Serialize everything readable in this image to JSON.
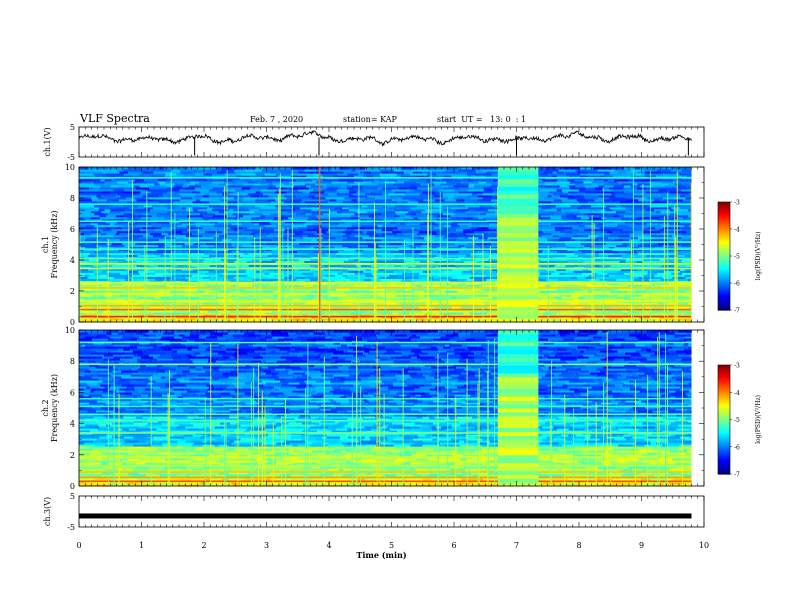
{
  "header": {
    "title": "VLF Spectra",
    "date": "Feb. 7 , 2020",
    "station": "station= KAP",
    "start_ut": "start  UT =   13: 0  : 1"
  },
  "chart_data": {
    "type": "heatmap",
    "x_axis": {
      "label": "Time  (min)",
      "range": [
        0,
        10
      ],
      "ticks": [
        "0",
        "1",
        "2",
        "3",
        "4",
        "5",
        "6",
        "7",
        "8",
        "9",
        "10"
      ]
    },
    "panels": [
      {
        "id": "ch1-waveform",
        "type": "line",
        "ylabel": "ch.1(V)",
        "ylim": [
          -5,
          5
        ],
        "yticks": [
          "5",
          "-5"
        ],
        "data_end_min": 9.8,
        "mean_level": 1.0
      },
      {
        "id": "ch1-spectrogram",
        "type": "heatmap",
        "ylabel_line1": "ch.1",
        "ylabel_line2": "Frequency  (kHz)",
        "ylim": [
          0,
          10
        ],
        "yticks": [
          "10",
          "8",
          "6",
          "4",
          "2",
          "0"
        ],
        "data_end_min": 9.8,
        "burst_interval_min": [
          6.7,
          7.35
        ],
        "colorbar": {
          "label": "log(PSD)(V²/Hz)",
          "range": [
            -7,
            -3
          ],
          "ticks": [
            "-3",
            "-4",
            "-5",
            "-6",
            "-7"
          ]
        }
      },
      {
        "id": "ch2-spectrogram",
        "type": "heatmap",
        "ylabel_line1": "ch.2",
        "ylabel_line2": "Frequency  (kHz)",
        "ylim": [
          0,
          10
        ],
        "yticks": [
          "10",
          "8",
          "6",
          "4",
          "2",
          "0"
        ],
        "data_end_min": 9.8,
        "burst_interval_min": [
          6.7,
          7.35
        ],
        "colorbar": {
          "label": "log(PSD)(V²/Hz)",
          "range": [
            -7,
            -3
          ],
          "ticks": [
            "-3",
            "-4",
            "-5",
            "-6",
            "-7"
          ]
        }
      },
      {
        "id": "ch3-waveform",
        "type": "line",
        "ylabel": "ch.3(V)",
        "ylim": [
          -5,
          5
        ],
        "yticks": [
          "5",
          "-5"
        ],
        "data_end_min": 9.8,
        "mean_level": -1.6
      }
    ],
    "colormap": [
      "#00007f",
      "#0000ff",
      "#0080ff",
      "#00ffff",
      "#80ff80",
      "#ffff00",
      "#ff8000",
      "#ff0000",
      "#7f0000"
    ]
  }
}
